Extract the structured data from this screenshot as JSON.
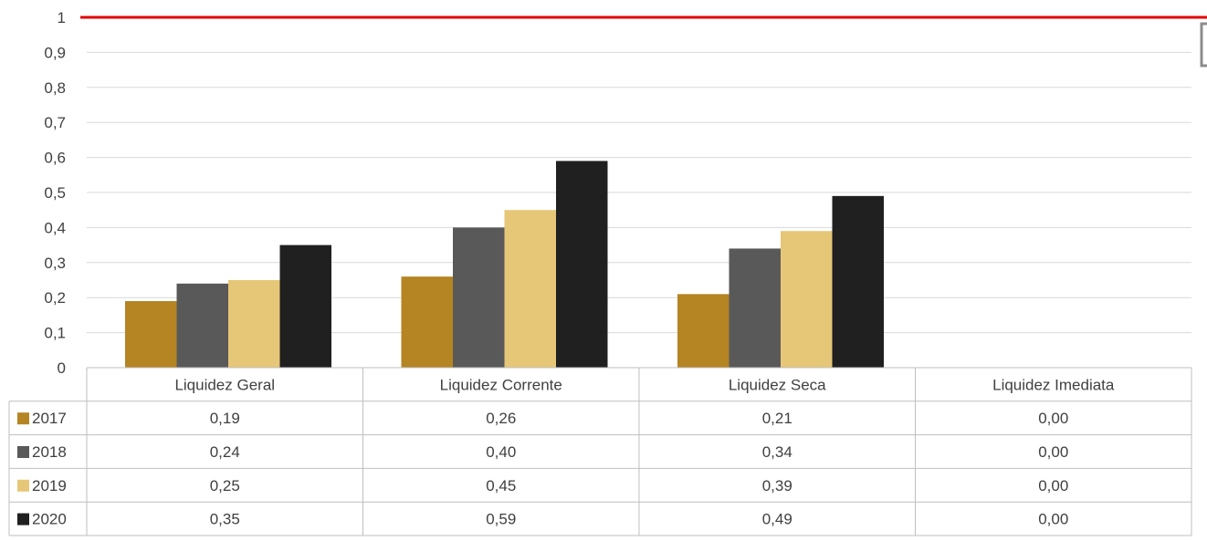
{
  "chart_data": {
    "type": "bar",
    "categories": [
      "Liquidez Geral",
      "Liquidez Corrente",
      "Liquidez Seca",
      "Liquidez Imediata"
    ],
    "series": [
      {
        "name": "2017",
        "values": [
          0.19,
          0.26,
          0.21,
          0.0
        ],
        "labels": [
          "0,19",
          "0,26",
          "0,21",
          "0,00"
        ],
        "color": "#B58523"
      },
      {
        "name": "2018",
        "values": [
          0.24,
          0.4,
          0.34,
          0.0
        ],
        "labels": [
          "0,24",
          "0,40",
          "0,34",
          "0,00"
        ],
        "color": "#595959"
      },
      {
        "name": "2019",
        "values": [
          0.25,
          0.45,
          0.39,
          0.0
        ],
        "labels": [
          "0,25",
          "0,45",
          "0,39",
          "0,00"
        ],
        "color": "#E6C778"
      },
      {
        "name": "2020",
        "values": [
          0.35,
          0.59,
          0.49,
          0.0
        ],
        "labels": [
          "0,35",
          "0,59",
          "0,49",
          "0,00"
        ],
        "color": "#202020"
      }
    ],
    "y_ticks": [
      "0",
      "0,1",
      "0,2",
      "0,3",
      "0,4",
      "0,5",
      "0,6",
      "0,7",
      "0,8",
      "0,9",
      "1"
    ],
    "ylim": [
      0,
      1
    ],
    "reference_line": {
      "value": 1,
      "color": "#E00000"
    },
    "grid": true,
    "legend": "data-table"
  }
}
